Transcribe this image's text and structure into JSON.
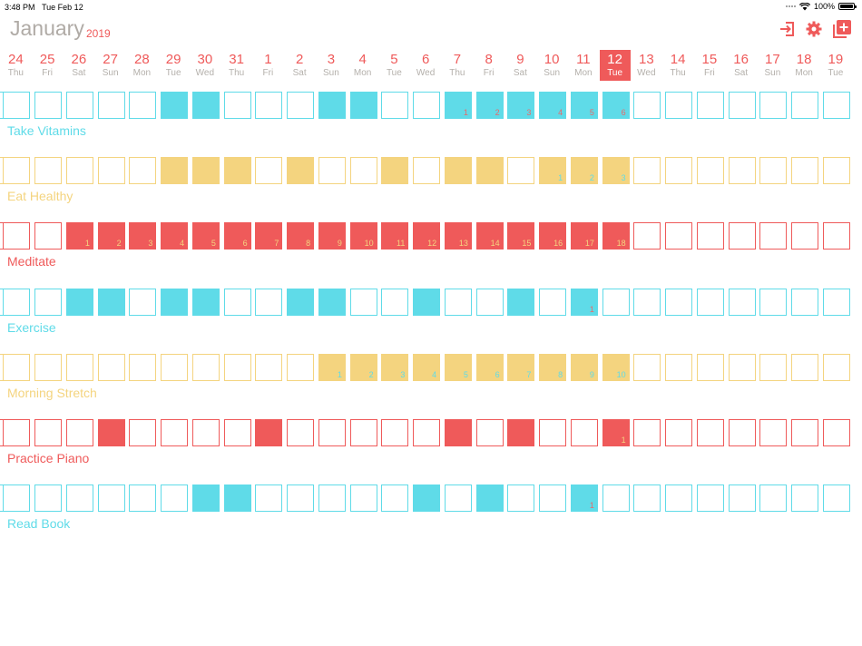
{
  "status_bar": {
    "time": "3:48 PM",
    "date": "Tue Feb 12",
    "battery": "100%",
    "battery_level": 1.0
  },
  "header": {
    "month": "January",
    "year": "2019"
  },
  "toolbar": {
    "icons": [
      "exit-icon",
      "gear-icon",
      "add-habit-icon"
    ]
  },
  "colors": {
    "cyan": "#5fdbe8",
    "yellow": "#f4d47f",
    "red": "#ef5a5a",
    "muted": "#b0aba6"
  },
  "days": [
    {
      "num": "24",
      "wd": "Thu"
    },
    {
      "num": "25",
      "wd": "Fri"
    },
    {
      "num": "26",
      "wd": "Sat"
    },
    {
      "num": "27",
      "wd": "Sun"
    },
    {
      "num": "28",
      "wd": "Mon"
    },
    {
      "num": "29",
      "wd": "Tue"
    },
    {
      "num": "30",
      "wd": "Wed"
    },
    {
      "num": "31",
      "wd": "Thu"
    },
    {
      "num": "1",
      "wd": "Fri"
    },
    {
      "num": "2",
      "wd": "Sat"
    },
    {
      "num": "3",
      "wd": "Sun"
    },
    {
      "num": "4",
      "wd": "Mon"
    },
    {
      "num": "5",
      "wd": "Tue"
    },
    {
      "num": "6",
      "wd": "Wed"
    },
    {
      "num": "7",
      "wd": "Thu"
    },
    {
      "num": "8",
      "wd": "Fri"
    },
    {
      "num": "9",
      "wd": "Sat"
    },
    {
      "num": "10",
      "wd": "Sun"
    },
    {
      "num": "11",
      "wd": "Mon"
    },
    {
      "num": "12",
      "wd": "Tue",
      "today": true
    },
    {
      "num": "13",
      "wd": "Wed"
    },
    {
      "num": "14",
      "wd": "Thu"
    },
    {
      "num": "15",
      "wd": "Fri"
    },
    {
      "num": "16",
      "wd": "Sat"
    },
    {
      "num": "17",
      "wd": "Sun"
    },
    {
      "num": "18",
      "wd": "Mon"
    },
    {
      "num": "19",
      "wd": "Tue"
    }
  ],
  "habits": [
    {
      "name": "Take Vitamins",
      "color": "#5fdbe8",
      "numColor": "#e86a6a",
      "filled": [
        5,
        6,
        10,
        11,
        14,
        15,
        16,
        17,
        18,
        19
      ],
      "streaks": {
        "14": "1",
        "15": "2",
        "16": "3",
        "17": "4",
        "18": "5",
        "19": "6"
      }
    },
    {
      "name": "Eat Healthy",
      "color": "#f4d47f",
      "numColor": "#5fdbe8",
      "filled": [
        5,
        6,
        7,
        9,
        12,
        14,
        15,
        17,
        18,
        19
      ],
      "streaks": {
        "17": "1",
        "18": "2",
        "19": "3"
      }
    },
    {
      "name": "Meditate",
      "color": "#ef5a5a",
      "numColor": "#f4d47f",
      "filled": [
        2,
        3,
        4,
        5,
        6,
        7,
        8,
        9,
        10,
        11,
        12,
        13,
        14,
        15,
        16,
        17,
        18,
        19
      ],
      "streaks": {
        "2": "1",
        "3": "2",
        "4": "3",
        "5": "4",
        "6": "5",
        "7": "6",
        "8": "7",
        "9": "8",
        "10": "9",
        "11": "10",
        "12": "11",
        "13": "12",
        "14": "13",
        "15": "14",
        "16": "15",
        "17": "16",
        "18": "17",
        "19": "18"
      }
    },
    {
      "name": "Exercise",
      "color": "#5fdbe8",
      "numColor": "#e86a6a",
      "filled": [
        2,
        3,
        5,
        6,
        9,
        10,
        13,
        16,
        18
      ],
      "streaks": {
        "18": "1"
      }
    },
    {
      "name": "Morning Stretch",
      "color": "#f4d47f",
      "numColor": "#5fdbe8",
      "filled": [
        10,
        11,
        12,
        13,
        14,
        15,
        16,
        17,
        18,
        19
      ],
      "streaks": {
        "10": "1",
        "11": "2",
        "12": "3",
        "13": "4",
        "14": "5",
        "15": "6",
        "16": "7",
        "17": "8",
        "18": "9",
        "19": "10"
      }
    },
    {
      "name": "Practice Piano",
      "color": "#ef5a5a",
      "numColor": "#f4d47f",
      "filled": [
        3,
        8,
        14,
        16,
        19
      ],
      "streaks": {
        "19": "1"
      }
    },
    {
      "name": "Read Book",
      "color": "#5fdbe8",
      "numColor": "#e86a6a",
      "filled": [
        6,
        7,
        13,
        15,
        18
      ],
      "streaks": {
        "18": "1"
      }
    }
  ]
}
